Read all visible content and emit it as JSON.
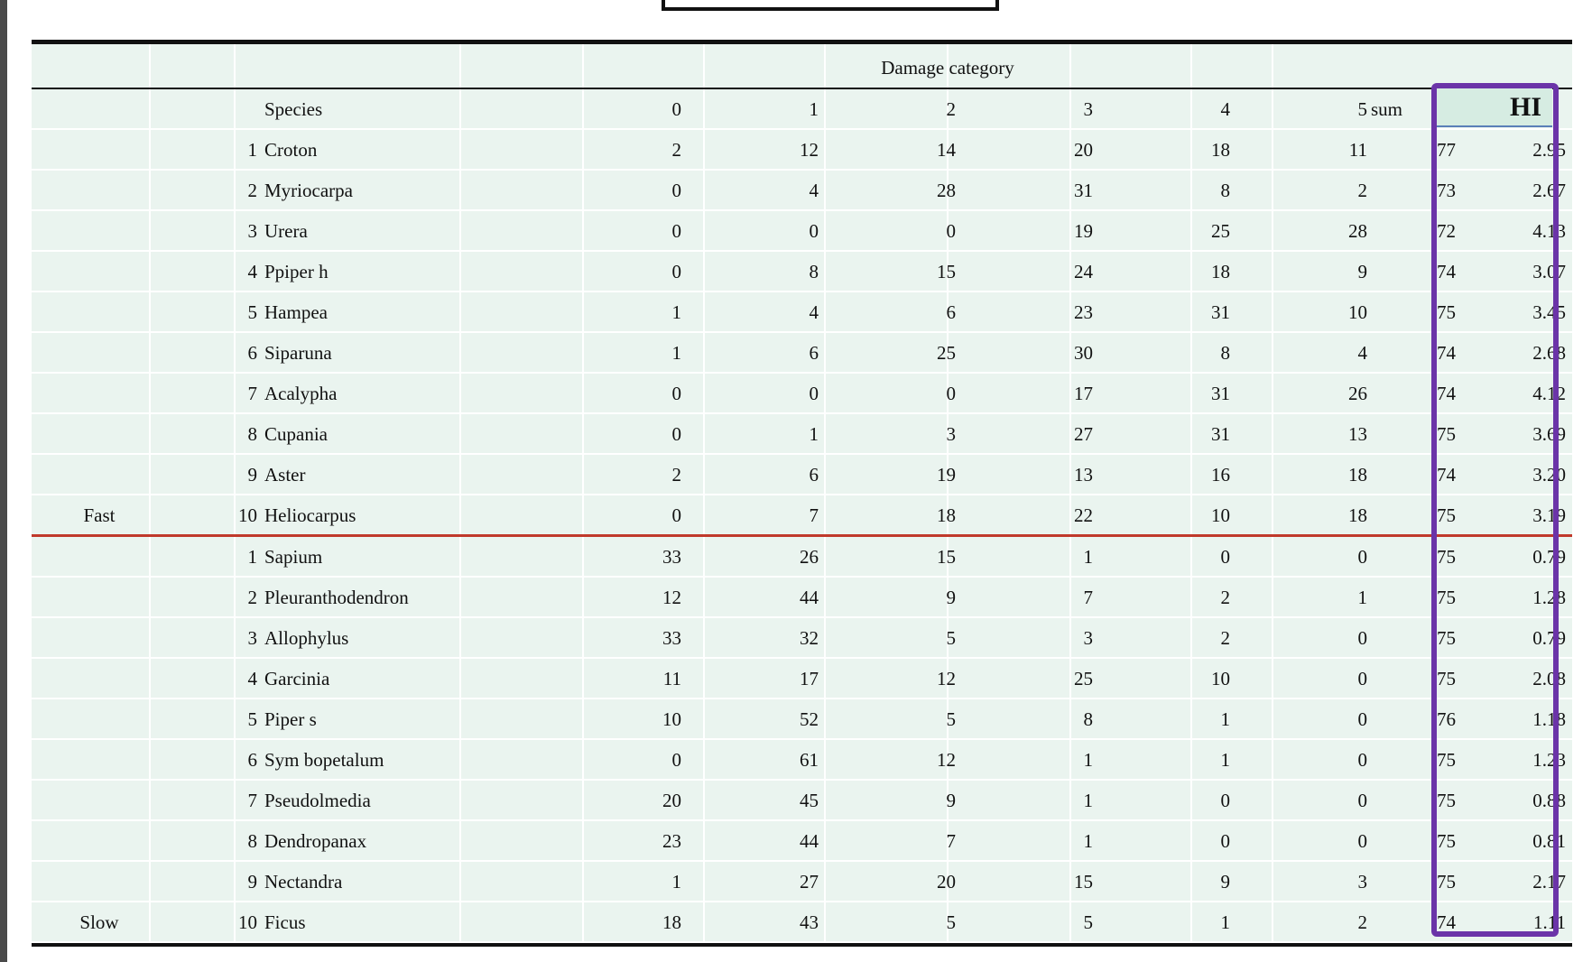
{
  "table": {
    "category_title": "Damage category",
    "headers": {
      "species": "Species",
      "c0": "0",
      "c1": "1",
      "c2": "2",
      "c3": "3",
      "c4": "4",
      "c5": "5",
      "sum": "sum",
      "hi": "HI"
    },
    "rows": [
      {
        "group": "",
        "idx": "1",
        "name": "Croton",
        "v": [
          "2",
          "12",
          "14",
          "20",
          "18",
          "11"
        ],
        "sum": "77",
        "hi": "2.95"
      },
      {
        "group": "",
        "idx": "2",
        "name": "Myriocarpa",
        "v": [
          "0",
          "4",
          "28",
          "31",
          "8",
          "2"
        ],
        "sum": "73",
        "hi": "2.67"
      },
      {
        "group": "",
        "idx": "3",
        "name": "Urera",
        "v": [
          "0",
          "0",
          "0",
          "19",
          "25",
          "28"
        ],
        "sum": "72",
        "hi": "4.13"
      },
      {
        "group": "",
        "idx": "4",
        "name": "Ppiper h",
        "v": [
          "0",
          "8",
          "15",
          "24",
          "18",
          "9"
        ],
        "sum": "74",
        "hi": "3.07"
      },
      {
        "group": "",
        "idx": "5",
        "name": "Hampea",
        "v": [
          "1",
          "4",
          "6",
          "23",
          "31",
          "10"
        ],
        "sum": "75",
        "hi": "3.45"
      },
      {
        "group": "",
        "idx": "6",
        "name": "Siparuna",
        "v": [
          "1",
          "6",
          "25",
          "30",
          "8",
          "4"
        ],
        "sum": "74",
        "hi": "2.68"
      },
      {
        "group": "",
        "idx": "7",
        "name": "Acalypha",
        "v": [
          "0",
          "0",
          "0",
          "17",
          "31",
          "26"
        ],
        "sum": "74",
        "hi": "4.12"
      },
      {
        "group": "",
        "idx": "8",
        "name": "Cupania",
        "v": [
          "0",
          "1",
          "3",
          "27",
          "31",
          "13"
        ],
        "sum": "75",
        "hi": "3.69"
      },
      {
        "group": "",
        "idx": "9",
        "name": "Aster",
        "v": [
          "2",
          "6",
          "19",
          "13",
          "16",
          "18"
        ],
        "sum": "74",
        "hi": "3.20"
      },
      {
        "group": "Fast",
        "idx": "10",
        "name": "Heliocarpus",
        "v": [
          "0",
          "7",
          "18",
          "22",
          "10",
          "18"
        ],
        "sum": "75",
        "hi": "3.19"
      },
      {
        "group": "",
        "idx": "1",
        "name": "Sapium",
        "v": [
          "33",
          "26",
          "15",
          "1",
          "0",
          "0"
        ],
        "sum": "75",
        "hi": "0.79"
      },
      {
        "group": "",
        "idx": "2",
        "name": "Pleuranthodendron",
        "v": [
          "12",
          "44",
          "9",
          "7",
          "2",
          "1"
        ],
        "sum": "75",
        "hi": "1.28"
      },
      {
        "group": "",
        "idx": "3",
        "name": "Allophylus",
        "v": [
          "33",
          "32",
          "5",
          "3",
          "2",
          "0"
        ],
        "sum": "75",
        "hi": "0.79"
      },
      {
        "group": "",
        "idx": "4",
        "name": "Garcinia",
        "v": [
          "11",
          "17",
          "12",
          "25",
          "10",
          "0"
        ],
        "sum": "75",
        "hi": "2.08"
      },
      {
        "group": "",
        "idx": "5",
        "name": "Piper s",
        "v": [
          "10",
          "52",
          "5",
          "8",
          "1",
          "0"
        ],
        "sum": "76",
        "hi": "1.18"
      },
      {
        "group": "",
        "idx": "6",
        "name": "Sym bopetalum",
        "v": [
          "0",
          "61",
          "12",
          "1",
          "1",
          "0"
        ],
        "sum": "75",
        "hi": "1.23"
      },
      {
        "group": "",
        "idx": "7",
        "name": "Pseudolmedia",
        "v": [
          "20",
          "45",
          "9",
          "1",
          "0",
          "0"
        ],
        "sum": "75",
        "hi": "0.88"
      },
      {
        "group": "",
        "idx": "8",
        "name": "Dendropanax",
        "v": [
          "23",
          "44",
          "7",
          "1",
          "0",
          "0"
        ],
        "sum": "75",
        "hi": "0.81"
      },
      {
        "group": "",
        "idx": "9",
        "name": "Nectandra",
        "v": [
          "1",
          "27",
          "20",
          "15",
          "9",
          "3"
        ],
        "sum": "75",
        "hi": "2.17"
      },
      {
        "group": "Slow",
        "idx": "10",
        "name": "Ficus",
        "v": [
          "18",
          "43",
          "5",
          "5",
          "1",
          "2"
        ],
        "sum": "74",
        "hi": "1.11"
      }
    ]
  },
  "colors": {
    "table_bg": "#eaf4ef",
    "hi_highlight": "#6b34a8",
    "group_divider": "#c0392b"
  }
}
